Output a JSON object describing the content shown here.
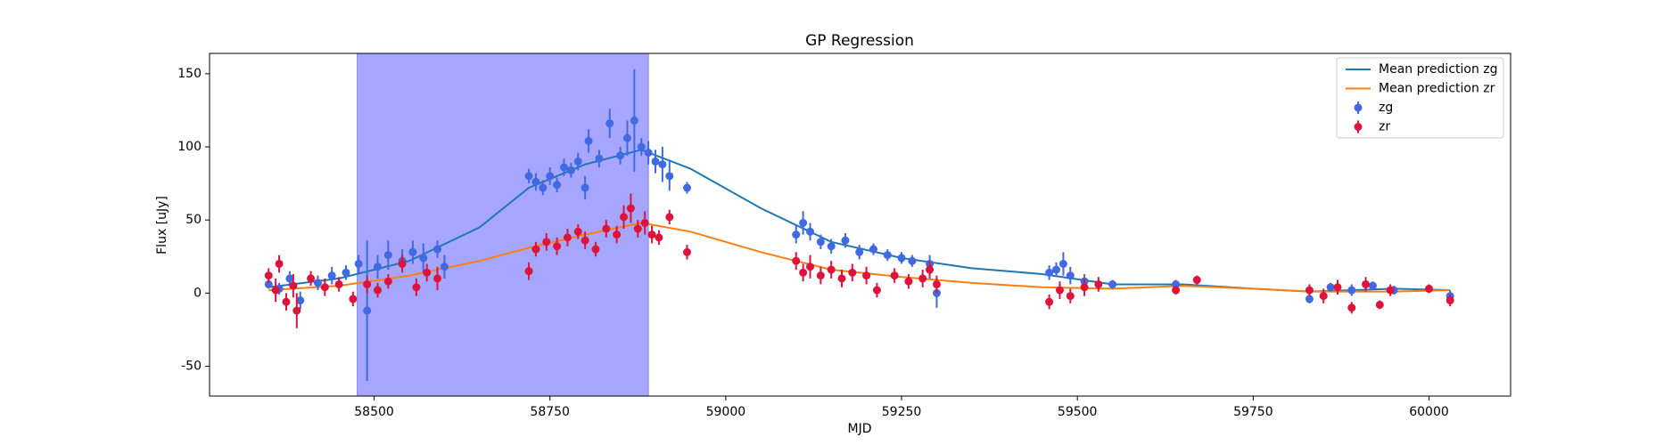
{
  "chart_data": {
    "type": "errorbar",
    "title": "GP Regression",
    "x_label": "MJD",
    "y_label": "Flux [uJy]",
    "xlim": [
      58266,
      60116
    ],
    "ylim": [
      -70.4,
      163.9
    ],
    "xticks": [
      58500,
      58750,
      59000,
      59250,
      59500,
      59750,
      60000
    ],
    "yticks": [
      -50,
      0,
      50,
      100,
      150
    ],
    "span": [
      58476,
      58890
    ],
    "span_color": "#a6a6ff",
    "legend": "upper right",
    "series": [
      {
        "name": "Mean prediction zg",
        "type": "line",
        "color": "#1f77b4",
        "x": [
          58350,
          58450,
          58550,
          58650,
          58720,
          58800,
          58880,
          58950,
          59050,
          59150,
          59250,
          59350,
          59450,
          59550,
          59650,
          59750,
          59830,
          59950,
          60030
        ],
        "values": [
          4,
          10,
          22,
          45,
          72,
          88,
          98,
          85,
          58,
          35,
          24,
          17,
          13,
          6,
          6,
          3,
          1,
          3,
          2
        ]
      },
      {
        "name": "Mean prediction zr",
        "type": "line",
        "color": "#ff7f0e",
        "x": [
          58350,
          58450,
          58550,
          58650,
          58720,
          58800,
          58880,
          58950,
          59050,
          59150,
          59250,
          59350,
          59450,
          59550,
          59650,
          59750,
          59830,
          59950,
          60030
        ],
        "values": [
          2,
          5,
          12,
          22,
          31,
          40,
          48,
          42,
          28,
          16,
          11,
          7,
          4,
          3,
          5,
          3,
          1,
          1,
          2
        ]
      },
      {
        "name": "zg",
        "type": "errorbar",
        "color": "#4169e1",
        "x": [
          58350,
          58365,
          58380,
          58395,
          58420,
          58440,
          58460,
          58478,
          58490,
          58505,
          58520,
          58540,
          58555,
          58570,
          58590,
          58600,
          58720,
          58730,
          58740,
          58750,
          58760,
          58770,
          58780,
          58790,
          58800,
          58805,
          58820,
          58835,
          58850,
          58860,
          58870,
          58880,
          58890,
          58900,
          58910,
          58920,
          58945,
          59100,
          59110,
          59120,
          59135,
          59150,
          59170,
          59190,
          59210,
          59230,
          59250,
          59265,
          59290,
          59300,
          59460,
          59470,
          59480,
          59490,
          59510,
          59550,
          59640,
          59830,
          59860,
          59890,
          59920,
          59950,
          60030
        ],
        "values": [
          6,
          3,
          10,
          -5,
          7,
          12,
          14,
          20,
          -12,
          18,
          26,
          22,
          28,
          24,
          30,
          18,
          80,
          76,
          72,
          80,
          74,
          86,
          84,
          90,
          72,
          104,
          92,
          116,
          94,
          106,
          118,
          100,
          96,
          90,
          88,
          80,
          72,
          40,
          48,
          42,
          35,
          32,
          36,
          28,
          30,
          26,
          24,
          22,
          20,
          0,
          14,
          16,
          20,
          12,
          8,
          6,
          6,
          -4,
          4,
          2,
          5,
          2,
          -2
        ],
        "errors": [
          3,
          4,
          5,
          6,
          5,
          6,
          5,
          6,
          48,
          8,
          10,
          8,
          8,
          10,
          6,
          8,
          5,
          6,
          5,
          6,
          5,
          6,
          5,
          6,
          8,
          8,
          6,
          10,
          6,
          12,
          35,
          6,
          8,
          8,
          12,
          10,
          4,
          6,
          8,
          6,
          5,
          5,
          5,
          5,
          4,
          4,
          4,
          4,
          6,
          10,
          5,
          5,
          8,
          6,
          5,
          3,
          3,
          3,
          3,
          4,
          3,
          3,
          4
        ]
      },
      {
        "name": "zr",
        "type": "errorbar",
        "color": "#dc143c",
        "x": [
          58350,
          58360,
          58365,
          58375,
          58385,
          58390,
          58410,
          58430,
          58450,
          58470,
          58490,
          58505,
          58520,
          58540,
          58560,
          58575,
          58590,
          58720,
          58730,
          58745,
          58760,
          58775,
          58790,
          58800,
          58815,
          58830,
          58845,
          58855,
          58865,
          58875,
          58885,
          58895,
          58905,
          58920,
          58945,
          59100,
          59110,
          59120,
          59135,
          59150,
          59165,
          59180,
          59200,
          59215,
          59240,
          59260,
          59280,
          59290,
          59300,
          59460,
          59475,
          59490,
          59510,
          59530,
          59640,
          59670,
          59830,
          59850,
          59870,
          59890,
          59910,
          59930,
          59945,
          60000,
          60030
        ],
        "values": [
          12,
          2,
          20,
          -6,
          5,
          -12,
          10,
          4,
          6,
          -4,
          6,
          2,
          8,
          20,
          4,
          14,
          10,
          15,
          30,
          35,
          32,
          38,
          42,
          36,
          30,
          44,
          40,
          52,
          58,
          44,
          48,
          40,
          38,
          52,
          28,
          22,
          14,
          18,
          12,
          16,
          10,
          14,
          12,
          2,
          12,
          8,
          10,
          16,
          6,
          -6,
          2,
          -2,
          4,
          6,
          2,
          9,
          2,
          -2,
          4,
          -10,
          6,
          -8,
          2,
          3,
          -5
        ],
        "errors": [
          5,
          8,
          6,
          6,
          8,
          12,
          5,
          6,
          5,
          5,
          6,
          5,
          5,
          6,
          6,
          6,
          8,
          6,
          5,
          6,
          6,
          6,
          5,
          6,
          5,
          6,
          6,
          8,
          10,
          6,
          8,
          6,
          5,
          5,
          5,
          6,
          6,
          8,
          6,
          6,
          6,
          6,
          6,
          5,
          5,
          5,
          6,
          6,
          6,
          5,
          6,
          5,
          6,
          5,
          3,
          3,
          4,
          5,
          5,
          4,
          5,
          3,
          4,
          3,
          4
        ]
      }
    ]
  }
}
